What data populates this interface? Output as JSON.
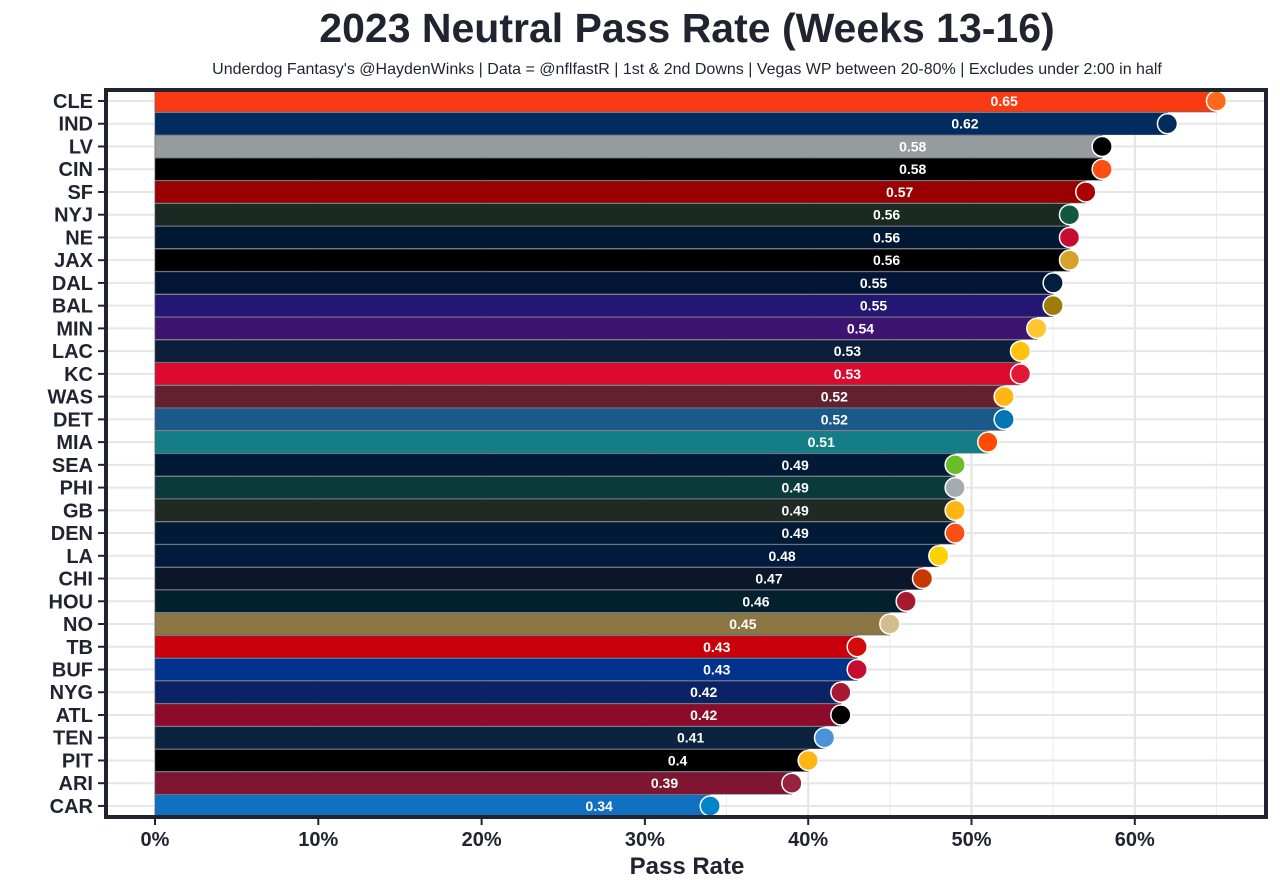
{
  "chart_data": {
    "type": "bar",
    "orientation": "horizontal",
    "title": "2023 Neutral Pass Rate (Weeks 13-16)",
    "subtitle": "Underdog Fantasy's @HaydenWinks | Data = @nflfastR | 1st & 2nd Downs | Vegas WP between 20-80% | Excludes under 2:00 in half",
    "xlabel": "Pass Rate",
    "ylabel": "",
    "xlim": [
      0,
      0.66
    ],
    "xticks": [
      0,
      0.1,
      0.2,
      0.3,
      0.4,
      0.5,
      0.6
    ],
    "xtick_labels": [
      "0%",
      "10%",
      "20%",
      "30%",
      "40%",
      "50%",
      "60%"
    ],
    "grid": true,
    "categories": [
      "CLE",
      "IND",
      "LV",
      "CIN",
      "SF",
      "NYJ",
      "NE",
      "JAX",
      "DAL",
      "BAL",
      "MIN",
      "LAC",
      "KC",
      "WAS",
      "DET",
      "MIA",
      "SEA",
      "PHI",
      "GB",
      "DEN",
      "LA",
      "CHI",
      "HOU",
      "NO",
      "TB",
      "BUF",
      "NYG",
      "ATL",
      "TEN",
      "PIT",
      "ARI",
      "CAR"
    ],
    "values": [
      0.65,
      0.62,
      0.58,
      0.58,
      0.57,
      0.56,
      0.56,
      0.56,
      0.55,
      0.55,
      0.54,
      0.53,
      0.53,
      0.52,
      0.52,
      0.51,
      0.49,
      0.49,
      0.49,
      0.49,
      0.48,
      0.47,
      0.46,
      0.45,
      0.43,
      0.43,
      0.42,
      0.42,
      0.41,
      0.4,
      0.39,
      0.34
    ],
    "data_labels": [
      "0.65",
      "0.62",
      "0.58",
      "0.58",
      "0.57",
      "0.56",
      "0.56",
      "0.56",
      "0.55",
      "0.55",
      "0.54",
      "0.53",
      "0.53",
      "0.52",
      "0.52",
      "0.51",
      "0.49",
      "0.49",
      "0.49",
      "0.49",
      "0.48",
      "0.47",
      "0.46",
      "0.45",
      "0.43",
      "0.43",
      "0.42",
      "0.42",
      "0.41",
      "0.4",
      "0.39",
      "0.34"
    ],
    "colors": [
      "#f93a12",
      "#002c5f",
      "#969c9e",
      "#000000",
      "#990000",
      "#1b2923",
      "#011835",
      "#000000",
      "#021535",
      "#241773",
      "#3f1470",
      "#0b1f3a",
      "#dd0a2f",
      "#63202f",
      "#1a5a8a",
      "#137e86",
      "#011a36",
      "#0a3a3a",
      "#1f2a22",
      "#011a36",
      "#011a3e",
      "#0b162a",
      "#03202f",
      "#8c7644",
      "#c8000c",
      "#00338d",
      "#0b2265",
      "#8e0a2a",
      "#0c2340",
      "#000000",
      "#7f1530",
      "#1270c0"
    ],
    "logo_colors": [
      "#ff6a1a",
      "#002c5f",
      "#000000",
      "#fb4f14",
      "#aa0000",
      "#125740",
      "#c60c30",
      "#d7a22a",
      "#041e42",
      "#9e7c0c",
      "#ffc62f",
      "#ffc20e",
      "#e31837",
      "#ffb612",
      "#0076b6",
      "#fc4c02",
      "#69be28",
      "#a5acaf",
      "#ffb612",
      "#fb4f14",
      "#ffd100",
      "#c83803",
      "#a71930",
      "#d3bc8d",
      "#d50a0a",
      "#c60c30",
      "#a71930",
      "#000000",
      "#4b92db",
      "#ffb612",
      "#97233f",
      "#0085ca"
    ]
  }
}
